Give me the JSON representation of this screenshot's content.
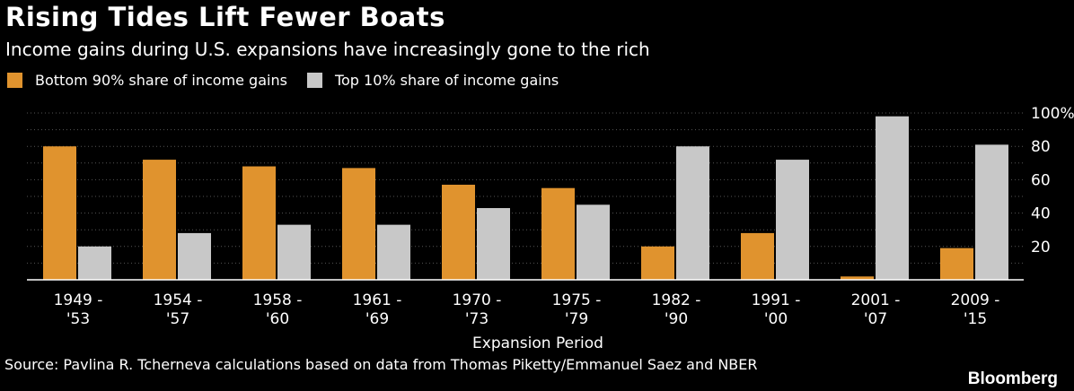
{
  "title": "Rising Tides Lift Fewer Boats",
  "subtitle": "Income gains during U.S. expansions have increasingly gone to the rich",
  "source": "Source: Pavlina R. Tcherneva calculations based on data from Thomas Piketty/Emmanuel Saez and NBER",
  "brand": "Bloomberg",
  "colors": {
    "background": "#000000",
    "bottom90": "#e0932e",
    "top10": "#c8c8c8",
    "grid": "#555555",
    "text": "#ffffff"
  },
  "chart_data": {
    "type": "bar",
    "title": "Rising Tides Lift Fewer Boats",
    "xlabel": "Expansion Period",
    "ylabel": "",
    "ylim": [
      0,
      100
    ],
    "yticks": [
      20,
      40,
      60,
      80,
      100
    ],
    "ytick_labels": [
      "20",
      "40",
      "60",
      "80",
      "100%"
    ],
    "grid": true,
    "legend_position": "top-left",
    "categories": [
      [
        "1949 -",
        "'53"
      ],
      [
        "1954 -",
        "'57"
      ],
      [
        "1958 -",
        "'60"
      ],
      [
        "1961 -",
        "'69"
      ],
      [
        "1970 -",
        "'73"
      ],
      [
        "1975 -",
        "'79"
      ],
      [
        "1982 -",
        "'90"
      ],
      [
        "1991 -",
        "'00"
      ],
      [
        "2001 -",
        "'07"
      ],
      [
        "2009 -",
        "'15"
      ]
    ],
    "series": [
      {
        "name": "Bottom 90% share of income gains",
        "values": [
          80,
          72,
          68,
          67,
          57,
          55,
          20,
          28,
          2,
          19
        ]
      },
      {
        "name": "Top 10% share of income gains",
        "values": [
          20,
          28,
          33,
          33,
          43,
          45,
          80,
          72,
          98,
          81
        ]
      }
    ]
  }
}
